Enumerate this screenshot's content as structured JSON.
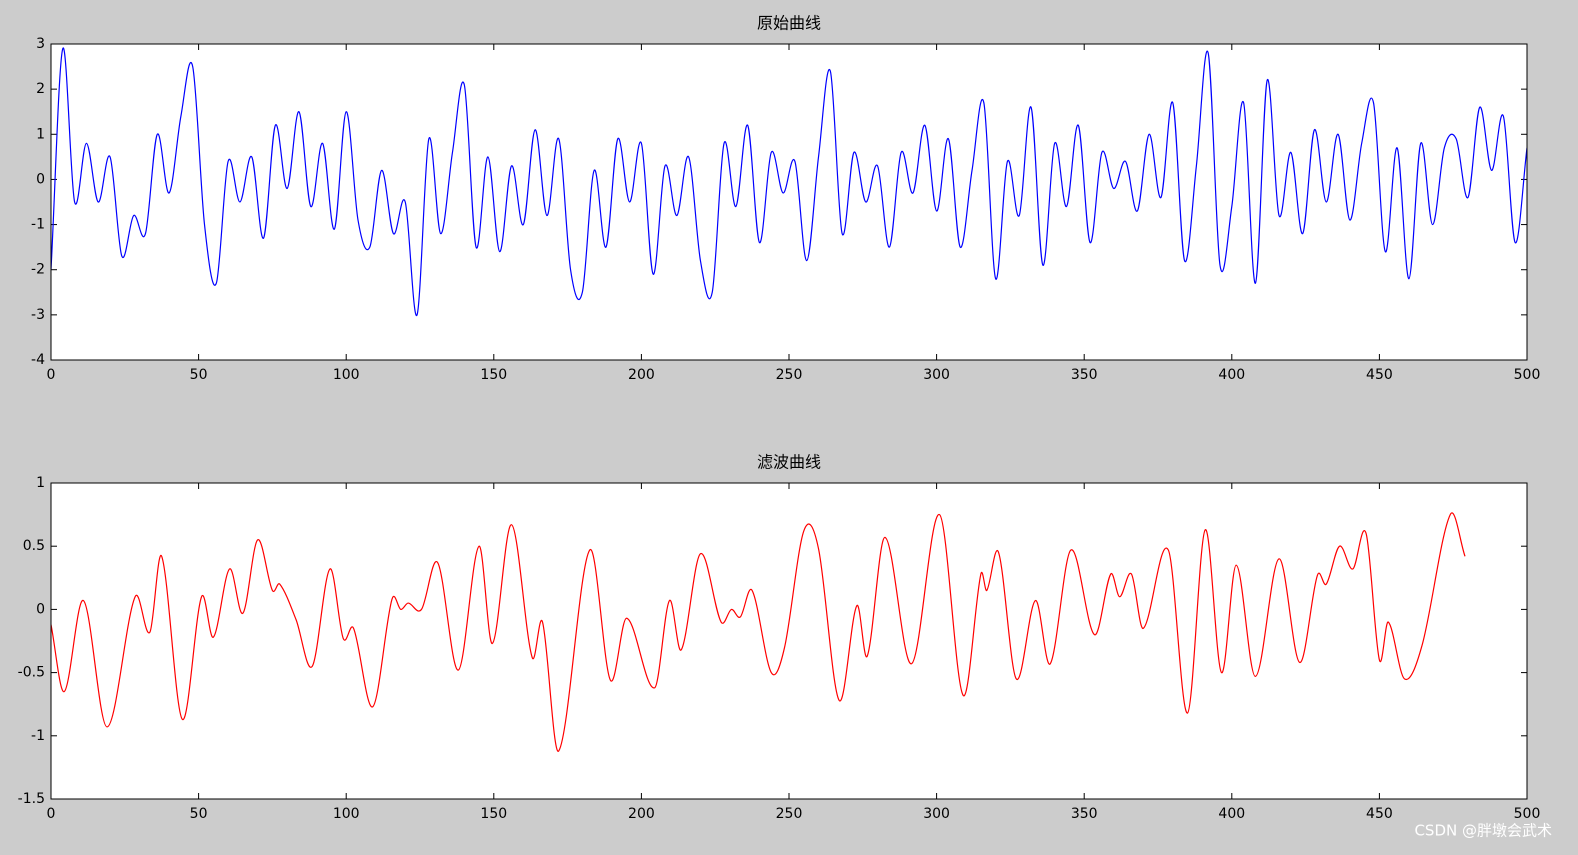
{
  "chart_data": [
    {
      "type": "line",
      "title": "原始曲线",
      "color": "#0000ff",
      "x": [
        0,
        4,
        8,
        12,
        16,
        20,
        24,
        28,
        32,
        36,
        40,
        44,
        48,
        52,
        56,
        60,
        64,
        68,
        72,
        76,
        80,
        84,
        88,
        92,
        96,
        100,
        104,
        108,
        112,
        116,
        120,
        124,
        128,
        132,
        136,
        140,
        144,
        148,
        152,
        156,
        160,
        164,
        168,
        172,
        176,
        180,
        184,
        188,
        192,
        196,
        200,
        204,
        208,
        212,
        216,
        220,
        224,
        228,
        232,
        236,
        240,
        244,
        248,
        252,
        256,
        260,
        264,
        268,
        272,
        276,
        280,
        284,
        288,
        292,
        296,
        300,
        304,
        308,
        312,
        316,
        320,
        324,
        328,
        332,
        336,
        340,
        344,
        348,
        352,
        356,
        360,
        364,
        368,
        372,
        376,
        380,
        384,
        388,
        392,
        396,
        400,
        404,
        408,
        412,
        416,
        420,
        424,
        428,
        432,
        436,
        440,
        444,
        448,
        452,
        456,
        460,
        464,
        468,
        472,
        476,
        480,
        484,
        488,
        492,
        496,
        500
      ],
      "values": [
        -2.0,
        2.9,
        -0.5,
        0.8,
        -0.5,
        0.5,
        -1.7,
        -0.8,
        -1.2,
        1.0,
        -0.3,
        1.4,
        2.5,
        -1.0,
        -2.3,
        0.4,
        -0.5,
        0.5,
        -1.3,
        1.2,
        -0.2,
        1.5,
        -0.6,
        0.8,
        -1.1,
        1.5,
        -0.9,
        -1.5,
        0.2,
        -1.2,
        -0.5,
        -3.0,
        0.9,
        -1.2,
        0.6,
        2.1,
        -1.5,
        0.5,
        -1.6,
        0.3,
        -1.0,
        1.1,
        -0.8,
        0.9,
        -2.0,
        -2.5,
        0.2,
        -1.5,
        0.9,
        -0.5,
        0.8,
        -2.1,
        0.3,
        -0.8,
        0.5,
        -1.8,
        -2.5,
        0.8,
        -0.6,
        1.2,
        -1.4,
        0.6,
        -0.3,
        0.4,
        -1.8,
        0.5,
        2.4,
        -1.2,
        0.6,
        -0.5,
        0.3,
        -1.5,
        0.6,
        -0.3,
        1.2,
        -0.7,
        0.9,
        -1.5,
        0.2,
        1.7,
        -2.2,
        0.4,
        -0.8,
        1.6,
        -1.9,
        0.8,
        -0.6,
        1.2,
        -1.4,
        0.6,
        -0.2,
        0.4,
        -0.7,
        1.0,
        -0.4,
        1.7,
        -1.8,
        0.3,
        2.8,
        -1.9,
        -0.6,
        1.7,
        -2.3,
        2.2,
        -0.8,
        0.6,
        -1.2,
        1.1,
        -0.5,
        1.0,
        -0.9,
        0.8,
        1.7,
        -1.6,
        0.7,
        -2.2,
        0.8,
        -1.0,
        0.7,
        0.9,
        -0.4,
        1.6,
        0.2,
        1.4,
        -1.4,
        0.7
      ],
      "xlim": [
        0,
        500
      ],
      "xticks": [
        0,
        50,
        100,
        150,
        200,
        250,
        300,
        350,
        400,
        450,
        500
      ],
      "ylim": [
        -4,
        3
      ],
      "yticks": [
        -4,
        -3,
        -2,
        -1,
        0,
        1,
        2,
        3
      ]
    },
    {
      "type": "line",
      "title": "滤波曲线",
      "color": "#ff0000",
      "x": [
        0,
        4.5,
        11,
        19,
        28.5,
        33.5,
        37.5,
        44.5,
        51,
        55,
        60.5,
        65,
        70,
        75,
        77.5,
        83,
        88.5,
        94.5,
        99,
        102.5,
        109,
        115.5,
        118.5,
        121,
        125.5,
        131,
        138,
        145,
        149.5,
        156,
        163,
        166.5,
        172,
        182.5,
        189.5,
        195,
        204.5,
        209.5,
        213.5,
        220,
        227,
        230.5,
        233.5,
        237.5,
        244,
        248.5,
        255,
        260,
        267,
        273,
        276.5,
        282.5,
        291.5,
        301,
        309,
        315,
        317,
        321,
        327,
        333.5,
        338.5,
        345.5,
        353.5,
        359,
        362,
        366,
        370,
        378.5,
        385,
        391,
        396.5,
        401.5,
        408,
        416,
        423,
        429,
        432,
        436.5,
        441,
        445.5,
        450,
        453,
        458.5,
        464.5,
        474,
        479
      ],
      "values": [
        -0.12,
        -0.65,
        0.07,
        -0.93,
        0.1,
        -0.18,
        0.42,
        -0.87,
        0.1,
        -0.22,
        0.32,
        -0.03,
        0.55,
        0.15,
        0.2,
        -0.08,
        -0.45,
        0.32,
        -0.23,
        -0.15,
        -0.77,
        0.08,
        0,
        0.05,
        0,
        0.37,
        -0.48,
        0.5,
        -0.27,
        0.67,
        -0.38,
        -0.1,
        -1.12,
        0.47,
        -0.56,
        -0.07,
        -0.62,
        0.07,
        -0.32,
        0.44,
        -0.1,
        0,
        -0.06,
        0.15,
        -0.5,
        -0.3,
        0.62,
        0.48,
        -0.72,
        0.03,
        -0.37,
        0.57,
        -0.43,
        0.75,
        -0.68,
        0.28,
        0.15,
        0.45,
        -0.55,
        0.07,
        -0.43,
        0.47,
        -0.2,
        0.28,
        0.1,
        0.28,
        -0.15,
        0.47,
        -0.82,
        0.63,
        -0.5,
        0.35,
        -0.53,
        0.4,
        -0.42,
        0.27,
        0.2,
        0.5,
        0.32,
        0.6,
        -0.4,
        -0.1,
        -0.55,
        -0.28,
        0.75,
        0.42
      ],
      "xlim": [
        0,
        500
      ],
      "xticks": [
        0,
        50,
        100,
        150,
        200,
        250,
        300,
        350,
        400,
        450,
        500
      ],
      "ylim": [
        -1.5,
        1
      ],
      "yticks": [
        -1.5,
        -1,
        -0.5,
        0,
        0.5,
        1
      ]
    }
  ],
  "watermark": "CSDN @胖墩会武术"
}
